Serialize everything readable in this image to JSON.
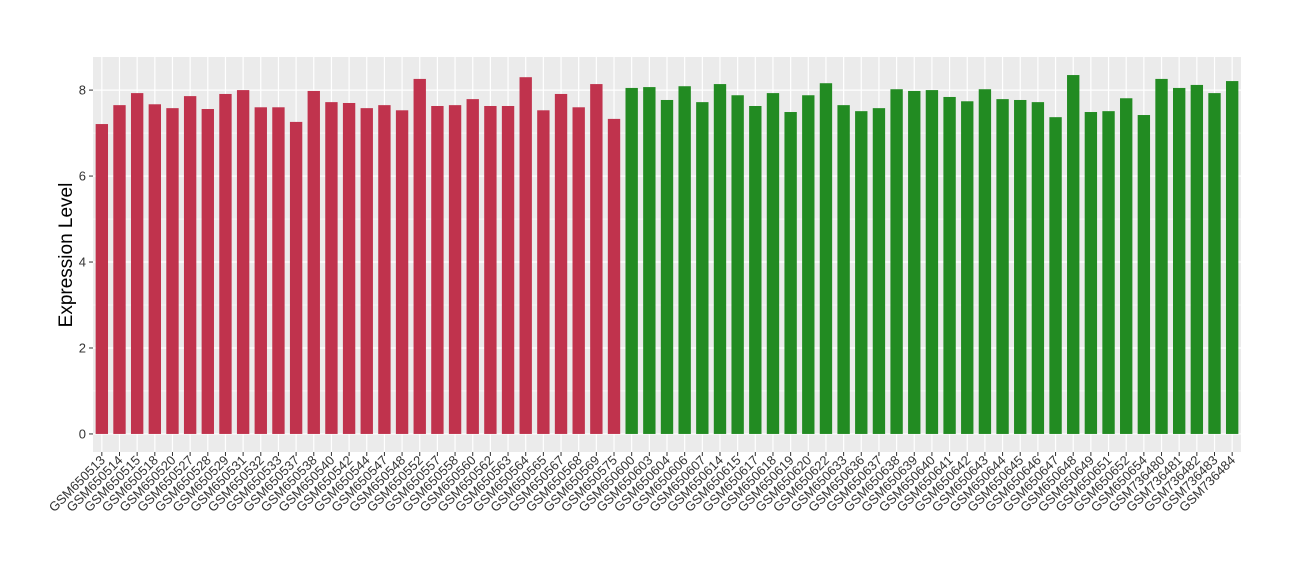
{
  "chart_data": {
    "type": "bar",
    "ylabel": "Expression Level",
    "categories": [
      "GSM650513",
      "GSM650514",
      "GSM650515",
      "GSM650518",
      "GSM650520",
      "GSM650527",
      "GSM650528",
      "GSM650529",
      "GSM650531",
      "GSM650532",
      "GSM650533",
      "GSM650537",
      "GSM650538",
      "GSM650540",
      "GSM650542",
      "GSM650544",
      "GSM650547",
      "GSM650548",
      "GSM650552",
      "GSM650557",
      "GSM650558",
      "GSM650560",
      "GSM650562",
      "GSM650563",
      "GSM650564",
      "GSM650565",
      "GSM650567",
      "GSM650568",
      "GSM650569",
      "GSM650575",
      "GSM650600",
      "GSM650603",
      "GSM650604",
      "GSM650606",
      "GSM650607",
      "GSM650614",
      "GSM650615",
      "GSM650617",
      "GSM650618",
      "GSM650619",
      "GSM650620",
      "GSM650622",
      "GSM650633",
      "GSM650636",
      "GSM650637",
      "GSM650638",
      "GSM650639",
      "GSM650640",
      "GSM650641",
      "GSM650642",
      "GSM650643",
      "GSM650644",
      "GSM650645",
      "GSM650646",
      "GSM650647",
      "GSM650648",
      "GSM650649",
      "GSM650651",
      "GSM650652",
      "GSM650654",
      "GSM736480",
      "GSM736481",
      "GSM736482",
      "GSM736483",
      "GSM736484"
    ],
    "values": [
      7.21,
      7.65,
      7.93,
      7.67,
      7.58,
      7.86,
      7.56,
      7.91,
      8.0,
      7.6,
      7.6,
      7.26,
      7.98,
      7.72,
      7.7,
      7.58,
      7.65,
      7.53,
      8.26,
      7.63,
      7.65,
      7.79,
      7.63,
      7.63,
      8.3,
      7.53,
      7.91,
      7.6,
      8.14,
      7.33,
      8.05,
      8.07,
      7.77,
      8.09,
      7.72,
      8.14,
      7.88,
      7.63,
      7.93,
      7.49,
      7.88,
      8.16,
      7.65,
      7.51,
      7.58,
      8.02,
      7.98,
      8.0,
      7.84,
      7.74,
      8.02,
      7.79,
      7.77,
      7.72,
      7.37,
      8.35,
      7.49,
      7.51,
      7.81,
      7.42,
      8.26,
      8.05,
      8.12,
      7.93,
      8.21
    ],
    "colors": [
      "#c0334d",
      "#c0334d",
      "#c0334d",
      "#c0334d",
      "#c0334d",
      "#c0334d",
      "#c0334d",
      "#c0334d",
      "#c0334d",
      "#c0334d",
      "#c0334d",
      "#c0334d",
      "#c0334d",
      "#c0334d",
      "#c0334d",
      "#c0334d",
      "#c0334d",
      "#c0334d",
      "#c0334d",
      "#c0334d",
      "#c0334d",
      "#c0334d",
      "#c0334d",
      "#c0334d",
      "#c0334d",
      "#c0334d",
      "#c0334d",
      "#c0334d",
      "#c0334d",
      "#c0334d",
      "#228b22",
      "#228b22",
      "#228b22",
      "#228b22",
      "#228b22",
      "#228b22",
      "#228b22",
      "#228b22",
      "#228b22",
      "#228b22",
      "#228b22",
      "#228b22",
      "#228b22",
      "#228b22",
      "#228b22",
      "#228b22",
      "#228b22",
      "#228b22",
      "#228b22",
      "#228b22",
      "#228b22",
      "#228b22",
      "#228b22",
      "#228b22",
      "#228b22",
      "#228b22",
      "#228b22",
      "#228b22",
      "#228b22",
      "#228b22",
      "#228b22",
      "#228b22",
      "#228b22",
      "#228b22",
      "#228b22"
    ],
    "ylim": [
      -0.42,
      8.77
    ],
    "yticks": [
      0,
      2,
      4,
      6,
      8
    ],
    "grid": true
  }
}
